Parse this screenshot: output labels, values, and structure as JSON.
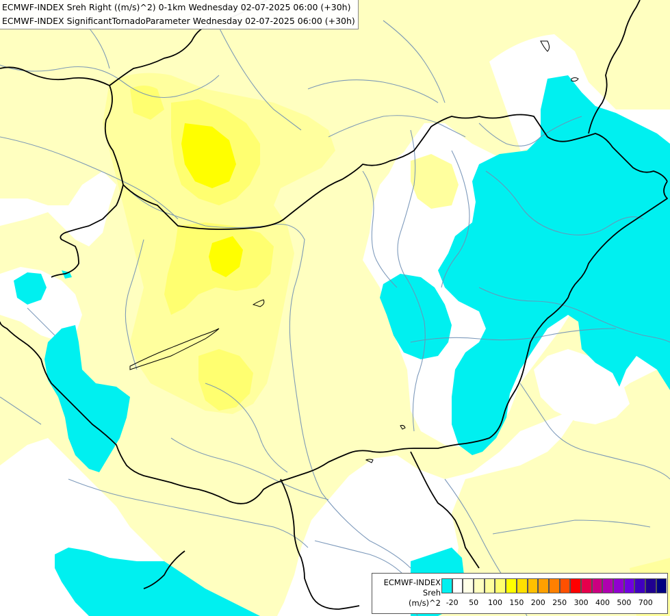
{
  "header": {
    "line1": "ECMWF-INDEX Sreh Right ((m/s)^2) 0-1km Wednesday 02-07-2025 06:00 (+30h)",
    "line2": "ECMWF-INDEX SignificantTornadoParameter Wednesday 02-07-2025 06:00 (+30h)"
  },
  "legend": {
    "title1": "ECMWF-INDEX",
    "title2": "Sreh",
    "title3": "(m/s)^2",
    "colors": [
      "#00f0f0",
      "#ffffff",
      "#ffffe6",
      "#ffffc0",
      "#ffff9e",
      "#ffff70",
      "#ffff00",
      "#ffe000",
      "#ffc000",
      "#ffa000",
      "#ff8000",
      "#ff5000",
      "#ff0000",
      "#e6004c",
      "#cc0080",
      "#b000b0",
      "#9000d0",
      "#7000e0",
      "#4000c0",
      "#200090",
      "#000080"
    ],
    "ticks": [
      "-20",
      "50",
      "100",
      "150",
      "200",
      "250",
      "300",
      "400",
      "500",
      "700"
    ]
  }
}
